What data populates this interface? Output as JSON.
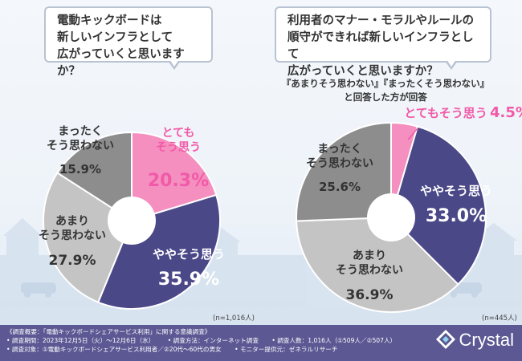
{
  "colors": {
    "pink": "#f48fc0",
    "navy": "#4b4888",
    "light_gray": "#c4c4c4",
    "dark_gray": "#8d8d8d",
    "footer": "#5b5893"
  },
  "chart_data": [
    {
      "type": "pie",
      "title": "電動キックボードは新しいインフラとして広がっていくと思いますか？",
      "title_lines": [
        "電動キックボードは",
        "新しいインフラとして",
        "広がっていくと思いますか？"
      ],
      "n_label": "(n=1,016人)",
      "slices": [
        {
          "label": "とても そう思う",
          "label_lines": [
            "とても",
            "そう思う"
          ],
          "value": 20.3,
          "value_label": "20.3%",
          "color": "#f48fc0",
          "text_color": "#f15aa7"
        },
        {
          "label": "ややそう思う",
          "label_lines": [
            "ややそう思う"
          ],
          "value": 35.9,
          "value_label": "35.9%",
          "color": "#4b4888",
          "text_color": "#ffffff"
        },
        {
          "label": "あまりそう思わない",
          "label_lines": [
            "あまり",
            "そう思わない"
          ],
          "value": 27.9,
          "value_label": "27.9%",
          "color": "#c4c4c4",
          "text_color": "#333333"
        },
        {
          "label": "まったくそう思わない",
          "label_lines": [
            "まったく",
            "そう思わない"
          ],
          "value": 15.9,
          "value_label": "15.9%",
          "color": "#8d8d8d",
          "text_color": "#333333"
        }
      ]
    },
    {
      "type": "pie",
      "title": "利用者のマナー・モラルやルールの順守ができれば新しいインフラとして広がっていくと思いますか？",
      "title_lines": [
        "利用者のマナー・モラルやルールの",
        "順守ができれば新しいインフラとして",
        "広がっていくと思いますか？"
      ],
      "subtitle_lines": [
        "『あまりそう思わない』『まったくそう思わない』",
        "と回答した方が回答"
      ],
      "n_label": "(n=445人)",
      "slices": [
        {
          "label": "とてもそう思う",
          "label_lines": [
            "とてもそう思う"
          ],
          "value": 4.5,
          "value_label": "4.5%",
          "color": "#f48fc0",
          "text_color": "#f15aa7"
        },
        {
          "label": "ややそう思う",
          "label_lines": [
            "ややそう思う"
          ],
          "value": 33.0,
          "value_label": "33.0%",
          "color": "#4b4888",
          "text_color": "#ffffff"
        },
        {
          "label": "あまりそう思わない",
          "label_lines": [
            "あまり",
            "そう思わない"
          ],
          "value": 36.9,
          "value_label": "36.9%",
          "color": "#c4c4c4",
          "text_color": "#333333"
        },
        {
          "label": "まったくそう思わない",
          "label_lines": [
            "まったく",
            "そう思わない"
          ],
          "value": 25.6,
          "value_label": "25.6%",
          "color": "#8d8d8d",
          "text_color": "#333333"
        }
      ]
    }
  ],
  "footer": {
    "lines": [
      [
        "《調査概要：「電動キックボードシェアサービス利用」に関する意識調査》"
      ],
      [
        "• 調査期間：2023年12月5日（火）〜12月6日（水）",
        "• 調査方法：インターネット調査",
        "• 調査人数：1,016人（①509人／②507人）"
      ],
      [
        "• 調査対象：①電動キックボードシェアサービス利用者／②20代〜60代の男女",
        "• モニター提供元：ゼネラルリサーチ"
      ]
    ],
    "logo_text": "Crystal"
  }
}
